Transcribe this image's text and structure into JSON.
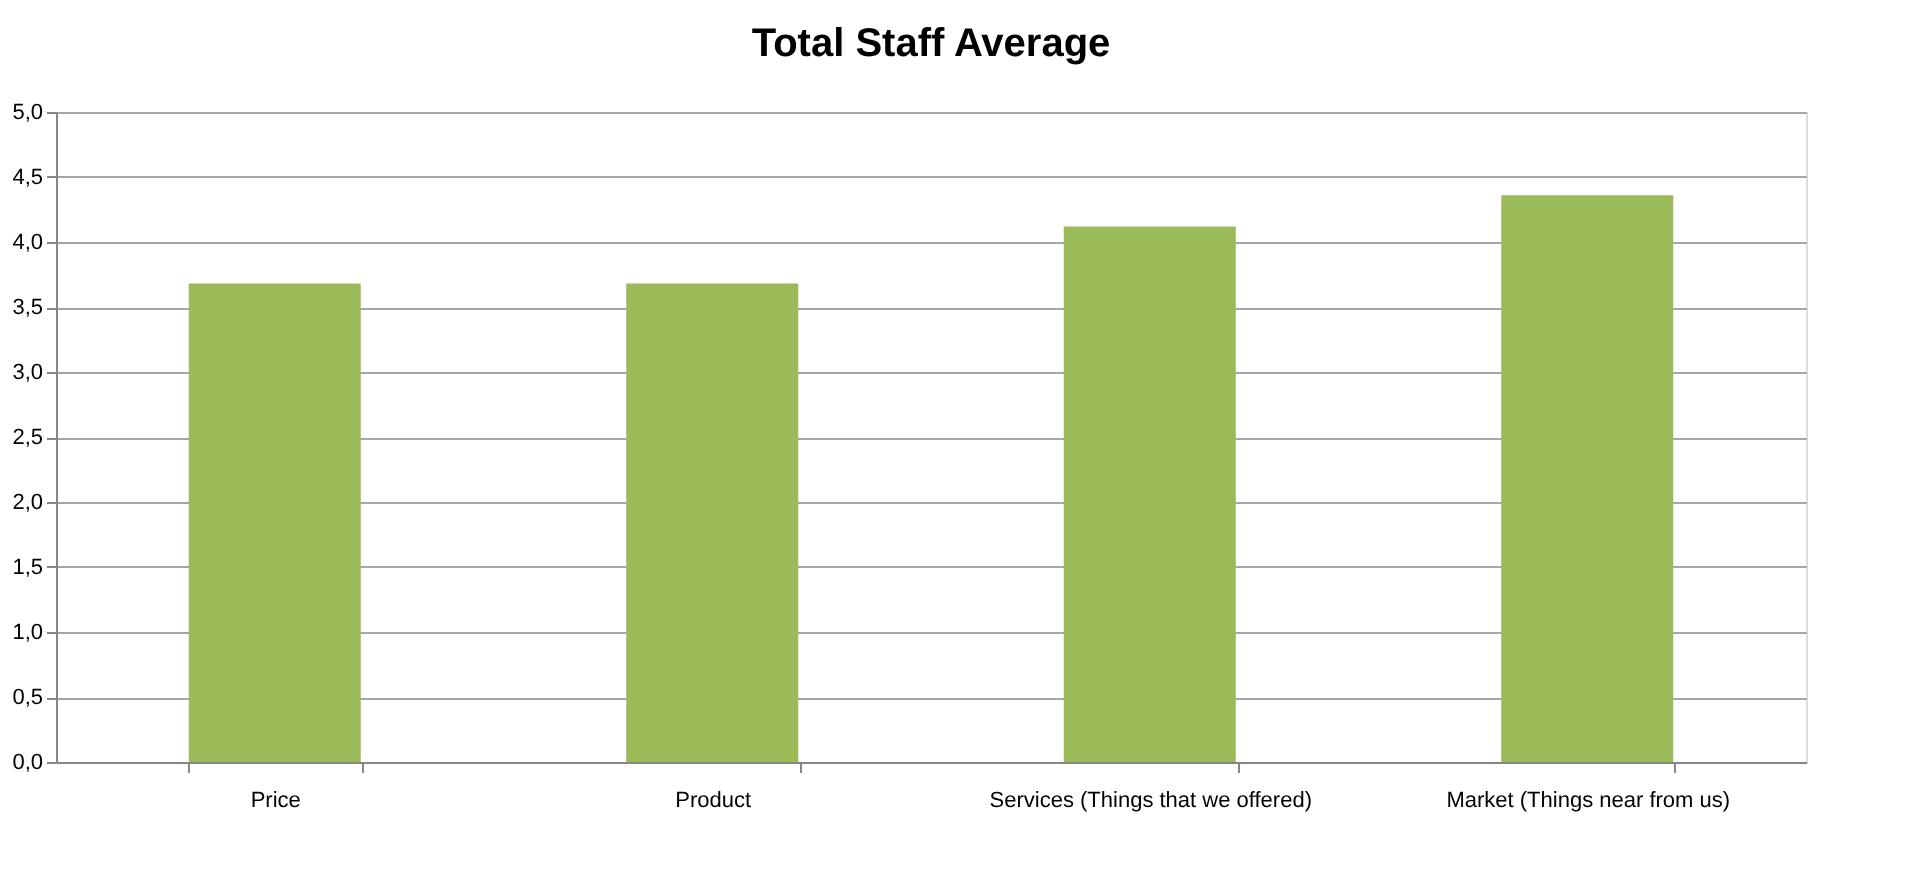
{
  "chart_data": {
    "type": "bar",
    "title": "Total Staff Average",
    "categories": [
      "Price",
      "Product",
      "Services (Things that we offered)",
      "Market (Things near from us)"
    ],
    "values": [
      3.68,
      3.68,
      4.12,
      4.36
    ],
    "color": "#9bbb59",
    "ylim": [
      0,
      5
    ],
    "yticks": [
      {
        "value": 0,
        "label": "0,0"
      },
      {
        "value": 0.5,
        "label": "0,5"
      },
      {
        "value": 1,
        "label": "1,0"
      },
      {
        "value": 1.5,
        "label": "1,5"
      },
      {
        "value": 2,
        "label": "2,0"
      },
      {
        "value": 2.5,
        "label": "2,5"
      },
      {
        "value": 3,
        "label": "3,0"
      },
      {
        "value": 3.5,
        "label": "3,5"
      },
      {
        "value": 4,
        "label": "4,0"
      },
      {
        "value": 4.5,
        "label": "4,5"
      },
      {
        "value": 5,
        "label": "5,0"
      }
    ],
    "grid": "y"
  }
}
